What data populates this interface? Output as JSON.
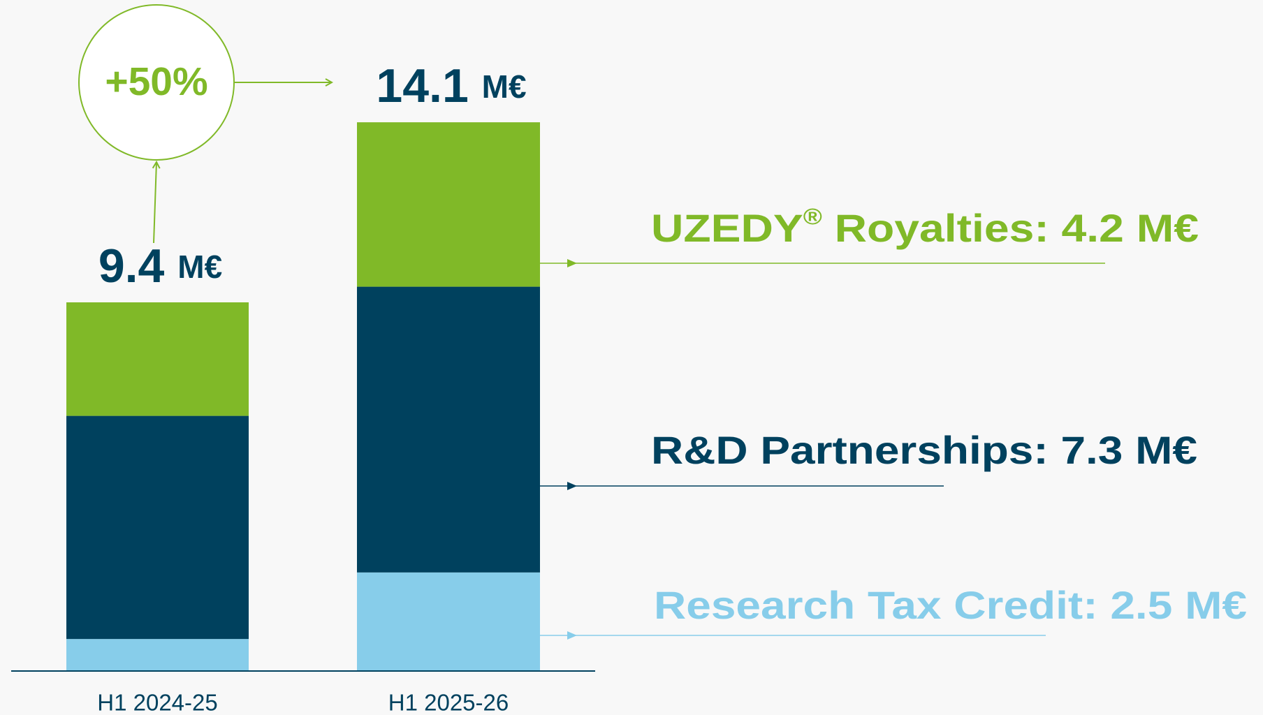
{
  "chart_data": {
    "type": "stacked_bar",
    "categories": [
      "H1 2024-25",
      "H1 2025-26"
    ],
    "series": [
      {
        "name": "Research Tax Credit: 2.5 M€",
        "color": "#87cdea",
        "values": [
          0.8,
          2.5
        ]
      },
      {
        "name": "R&D Partnerships: 7.3 M€",
        "color": "#00415e",
        "values": [
          5.7,
          7.3
        ]
      },
      {
        "name": "UZEDY® Royalties: 4.2 M€",
        "color": "#80b928",
        "values": [
          2.9,
          4.2
        ]
      }
    ],
    "totals": {
      "values": [
        9.4,
        14.1
      ],
      "value_labels": [
        "9.4 M€",
        "14.1 M€"
      ]
    },
    "growth_label": "+50%",
    "ylim": [
      0,
      16
    ]
  }
}
